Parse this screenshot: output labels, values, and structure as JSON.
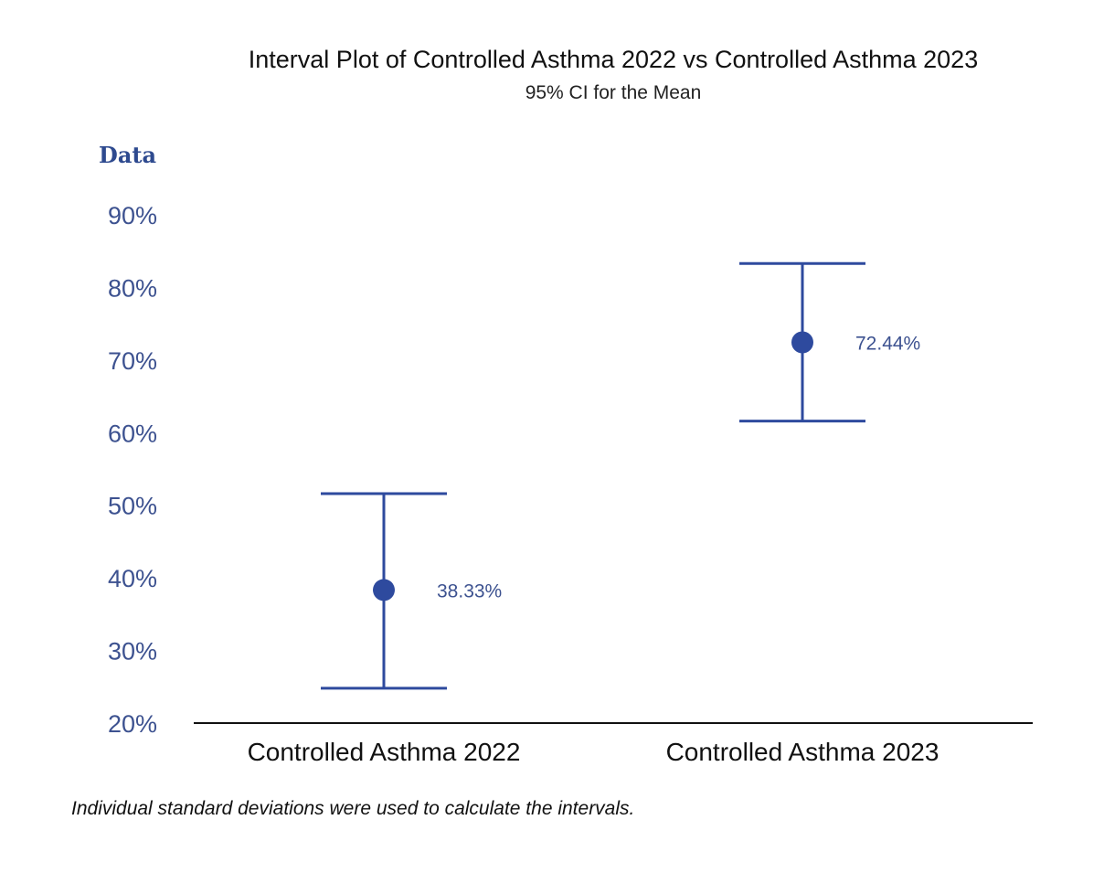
{
  "chart_data": {
    "type": "interval",
    "title": "Interval Plot of Controlled Asthma 2022 vs Controlled Asthma 2023",
    "subtitle": "95% CI for the Mean",
    "ylabel": "Data",
    "xlabel": "",
    "ylim": [
      20,
      90
    ],
    "yticks": [
      "20%",
      "30%",
      "40%",
      "50%",
      "60%",
      "70%",
      "80%",
      "90%"
    ],
    "ytick_values": [
      20,
      30,
      40,
      50,
      60,
      70,
      80,
      90
    ],
    "categories": [
      "Controlled Asthma 2022",
      "Controlled Asthma 2023"
    ],
    "means": [
      38.33,
      72.44
    ],
    "lower": [
      24.8,
      61.6
    ],
    "upper": [
      51.6,
      83.3
    ],
    "mean_labels": [
      "38.33%",
      "72.44%"
    ],
    "grid": false,
    "legend": "none",
    "colors": {
      "series": "#2e4a9e",
      "tick_text": "#3d5290",
      "axis": "#111111"
    }
  },
  "footnote": "Individual standard deviations were used to calculate the intervals."
}
